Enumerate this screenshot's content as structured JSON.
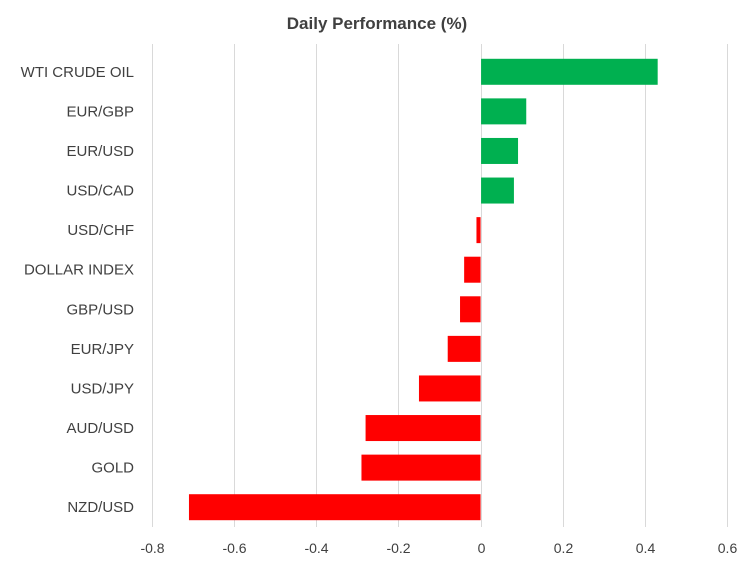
{
  "chart_data": {
    "type": "bar",
    "orientation": "horizontal",
    "title": "Daily Performance (%)",
    "xlabel": "",
    "ylabel": "",
    "categories": [
      "WTI CRUDE OIL",
      "EUR/GBP",
      "EUR/USD",
      "USD/CAD",
      "USD/CHF",
      "DOLLAR INDEX",
      "GBP/USD",
      "EUR/JPY",
      "USD/JPY",
      "AUD/USD",
      "GOLD",
      "NZD/USD"
    ],
    "values": [
      0.43,
      0.11,
      0.09,
      0.08,
      -0.01,
      -0.04,
      -0.05,
      -0.08,
      -0.15,
      -0.28,
      -0.29,
      -0.71
    ],
    "xlim": [
      -0.8,
      0.6
    ],
    "x_ticks": [
      -0.8,
      -0.6,
      -0.4,
      -0.2,
      0,
      0.2,
      0.4,
      0.6
    ],
    "x_tick_labels": [
      "-0.8",
      "-0.6",
      "-0.4",
      "-0.2",
      "0",
      "0.2",
      "0.4",
      "0.6"
    ],
    "grid": "vertical",
    "legend": "none",
    "colors": {
      "positive": "#00b050",
      "negative": "#ff0000",
      "grid": "#d9d9d9",
      "text": "#404040"
    }
  }
}
